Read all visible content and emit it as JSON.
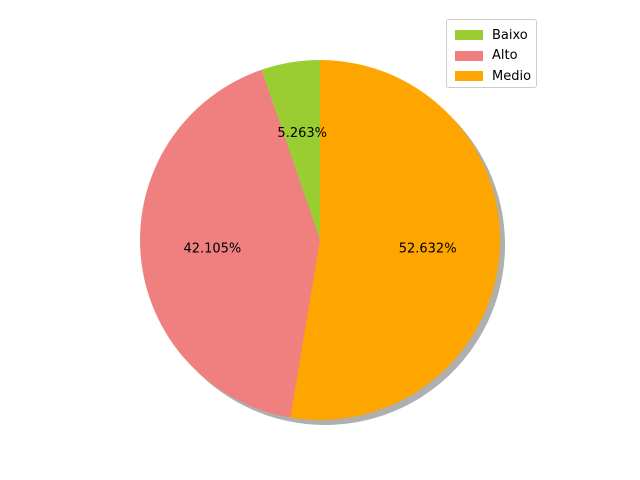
{
  "chart_data": {
    "type": "pie",
    "slices": [
      {
        "label": "Baixo",
        "value": 5.263,
        "pct_label": "5.263%",
        "color": "#9acd32"
      },
      {
        "label": "Alto",
        "value": 42.105,
        "pct_label": "42.105%",
        "color": "#f08080"
      },
      {
        "label": "Medio",
        "value": 52.632,
        "pct_label": "52.632%",
        "color": "#ffa500"
      }
    ],
    "shadow": true,
    "legend_position": "top-right"
  }
}
